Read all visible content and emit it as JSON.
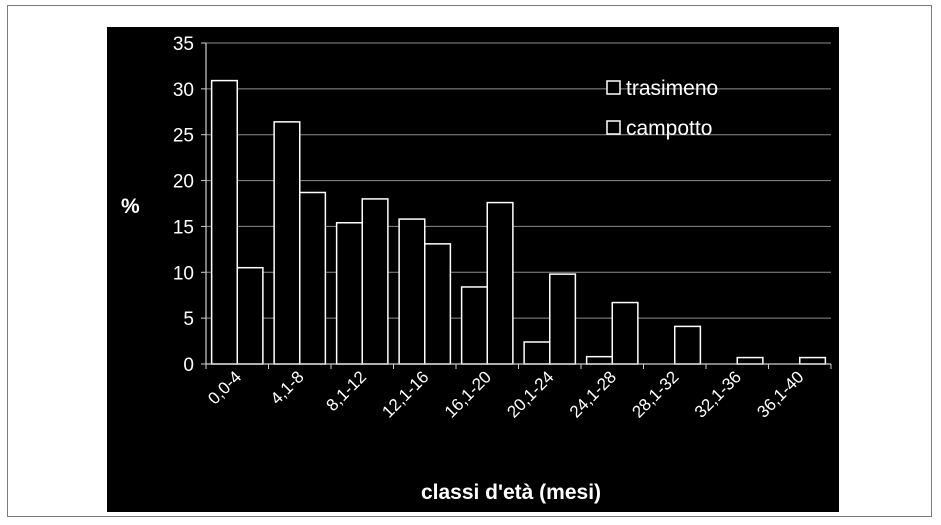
{
  "chart_data": {
    "type": "bar",
    "title": "",
    "ylabel": "%",
    "xlabel": "classi d'età (mesi)",
    "ylim": [
      0,
      35
    ],
    "yticks": [
      0,
      5,
      10,
      15,
      20,
      25,
      30,
      35
    ],
    "grid": true,
    "legend_position": "top-right",
    "categories": [
      "0,0-4",
      "4,1-8",
      "8,1-12",
      "12,1-16",
      "16,1-20",
      "20,1-24",
      "24,1-28",
      "28,1-32",
      "32,1-36",
      "36,1-40"
    ],
    "series": [
      {
        "name": "trasimeno",
        "values": [
          30.9,
          26.4,
          15.4,
          15.8,
          8.4,
          2.4,
          0.8,
          0,
          0,
          0
        ]
      },
      {
        "name": "campotto",
        "values": [
          10.5,
          18.7,
          18.0,
          13.1,
          17.6,
          9.8,
          6.7,
          4.1,
          0.7,
          0.7
        ]
      }
    ],
    "colors": {
      "background": "#000000",
      "bar_fill": "#000000",
      "bar_stroke": "#ffffff",
      "grid": "#8c8c8c",
      "text": "#ffffff"
    }
  }
}
